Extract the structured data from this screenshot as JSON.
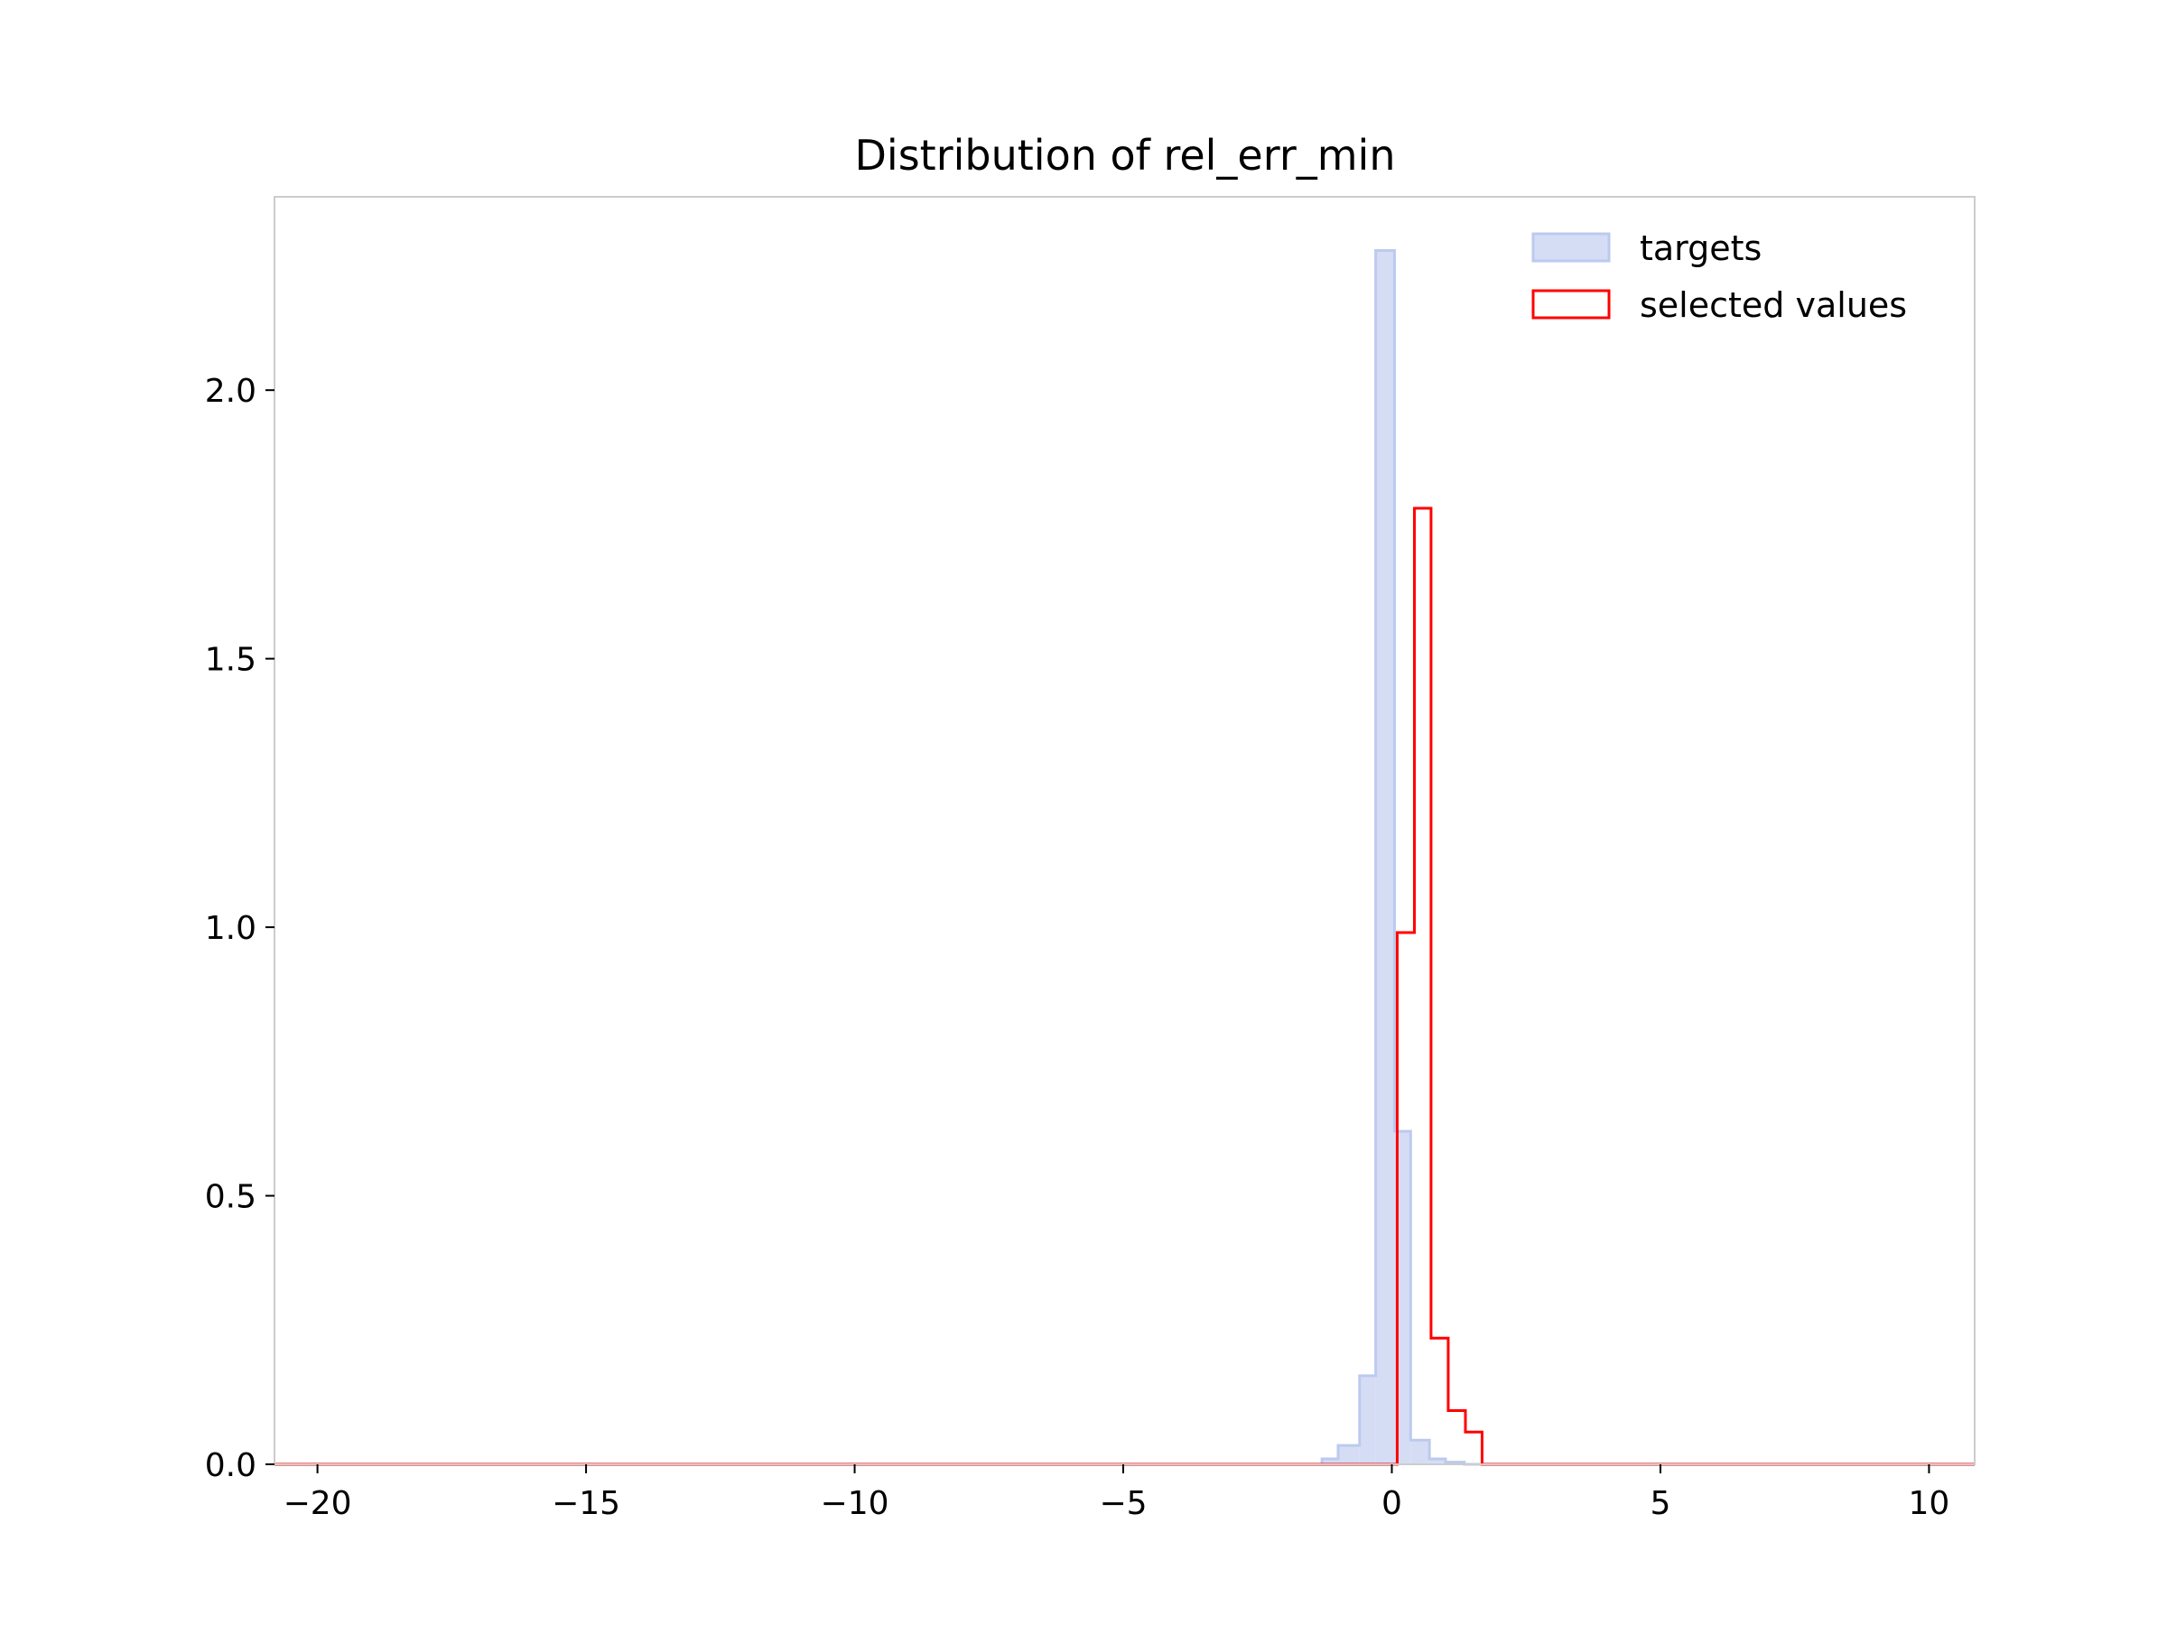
{
  "chart_data": {
    "type": "histogram",
    "title": "Distribution of rel_err_min",
    "xlabel": "",
    "ylabel": "",
    "xlim": [
      -20.8,
      10.85
    ],
    "ylim": [
      0,
      2.36
    ],
    "xticks": [
      -20,
      -15,
      -10,
      -5,
      0,
      5,
      10
    ],
    "xtick_labels": [
      "−20",
      "−15",
      "−10",
      "−5",
      "0",
      "5",
      "10"
    ],
    "yticks": [
      0.0,
      0.5,
      1.0,
      1.5,
      2.0
    ],
    "ytick_labels": [
      "0.0",
      "0.5",
      "1.0",
      "1.5",
      "2.0"
    ],
    "grid": false,
    "legend": {
      "position": "top-right",
      "entries": [
        "targets",
        "selected values"
      ]
    },
    "series": [
      {
        "name": "targets",
        "style": "filled",
        "fill": "#d5ddf5",
        "edge": "#bccaee",
        "bins": [
          {
            "x0": -20.8,
            "x1": -1.3,
            "y": 0.0
          },
          {
            "x0": -1.3,
            "x1": -1.0,
            "y": 0.01
          },
          {
            "x0": -1.0,
            "x1": -0.6,
            "y": 0.035
          },
          {
            "x0": -0.6,
            "x1": -0.3,
            "y": 0.165
          },
          {
            "x0": -0.3,
            "x1": 0.05,
            "y": 2.26
          },
          {
            "x0": 0.05,
            "x1": 0.35,
            "y": 0.62
          },
          {
            "x0": 0.35,
            "x1": 0.7,
            "y": 0.045
          },
          {
            "x0": 0.7,
            "x1": 1.0,
            "y": 0.01
          },
          {
            "x0": 1.0,
            "x1": 1.35,
            "y": 0.004
          },
          {
            "x0": 1.35,
            "x1": 10.85,
            "y": 0.0
          }
        ]
      },
      {
        "name": "selected values",
        "style": "step",
        "edge": "#ff0000",
        "bins": [
          {
            "x0": -20.8,
            "x1": 0.1,
            "y": 0.0
          },
          {
            "x0": 0.1,
            "x1": 0.42,
            "y": 0.99
          },
          {
            "x0": 0.42,
            "x1": 0.73,
            "y": 1.78
          },
          {
            "x0": 0.73,
            "x1": 1.05,
            "y": 0.235
          },
          {
            "x0": 1.05,
            "x1": 1.37,
            "y": 0.1
          },
          {
            "x0": 1.37,
            "x1": 1.68,
            "y": 0.06
          },
          {
            "x0": 1.68,
            "x1": 10.85,
            "y": 0.0
          }
        ]
      }
    ]
  }
}
